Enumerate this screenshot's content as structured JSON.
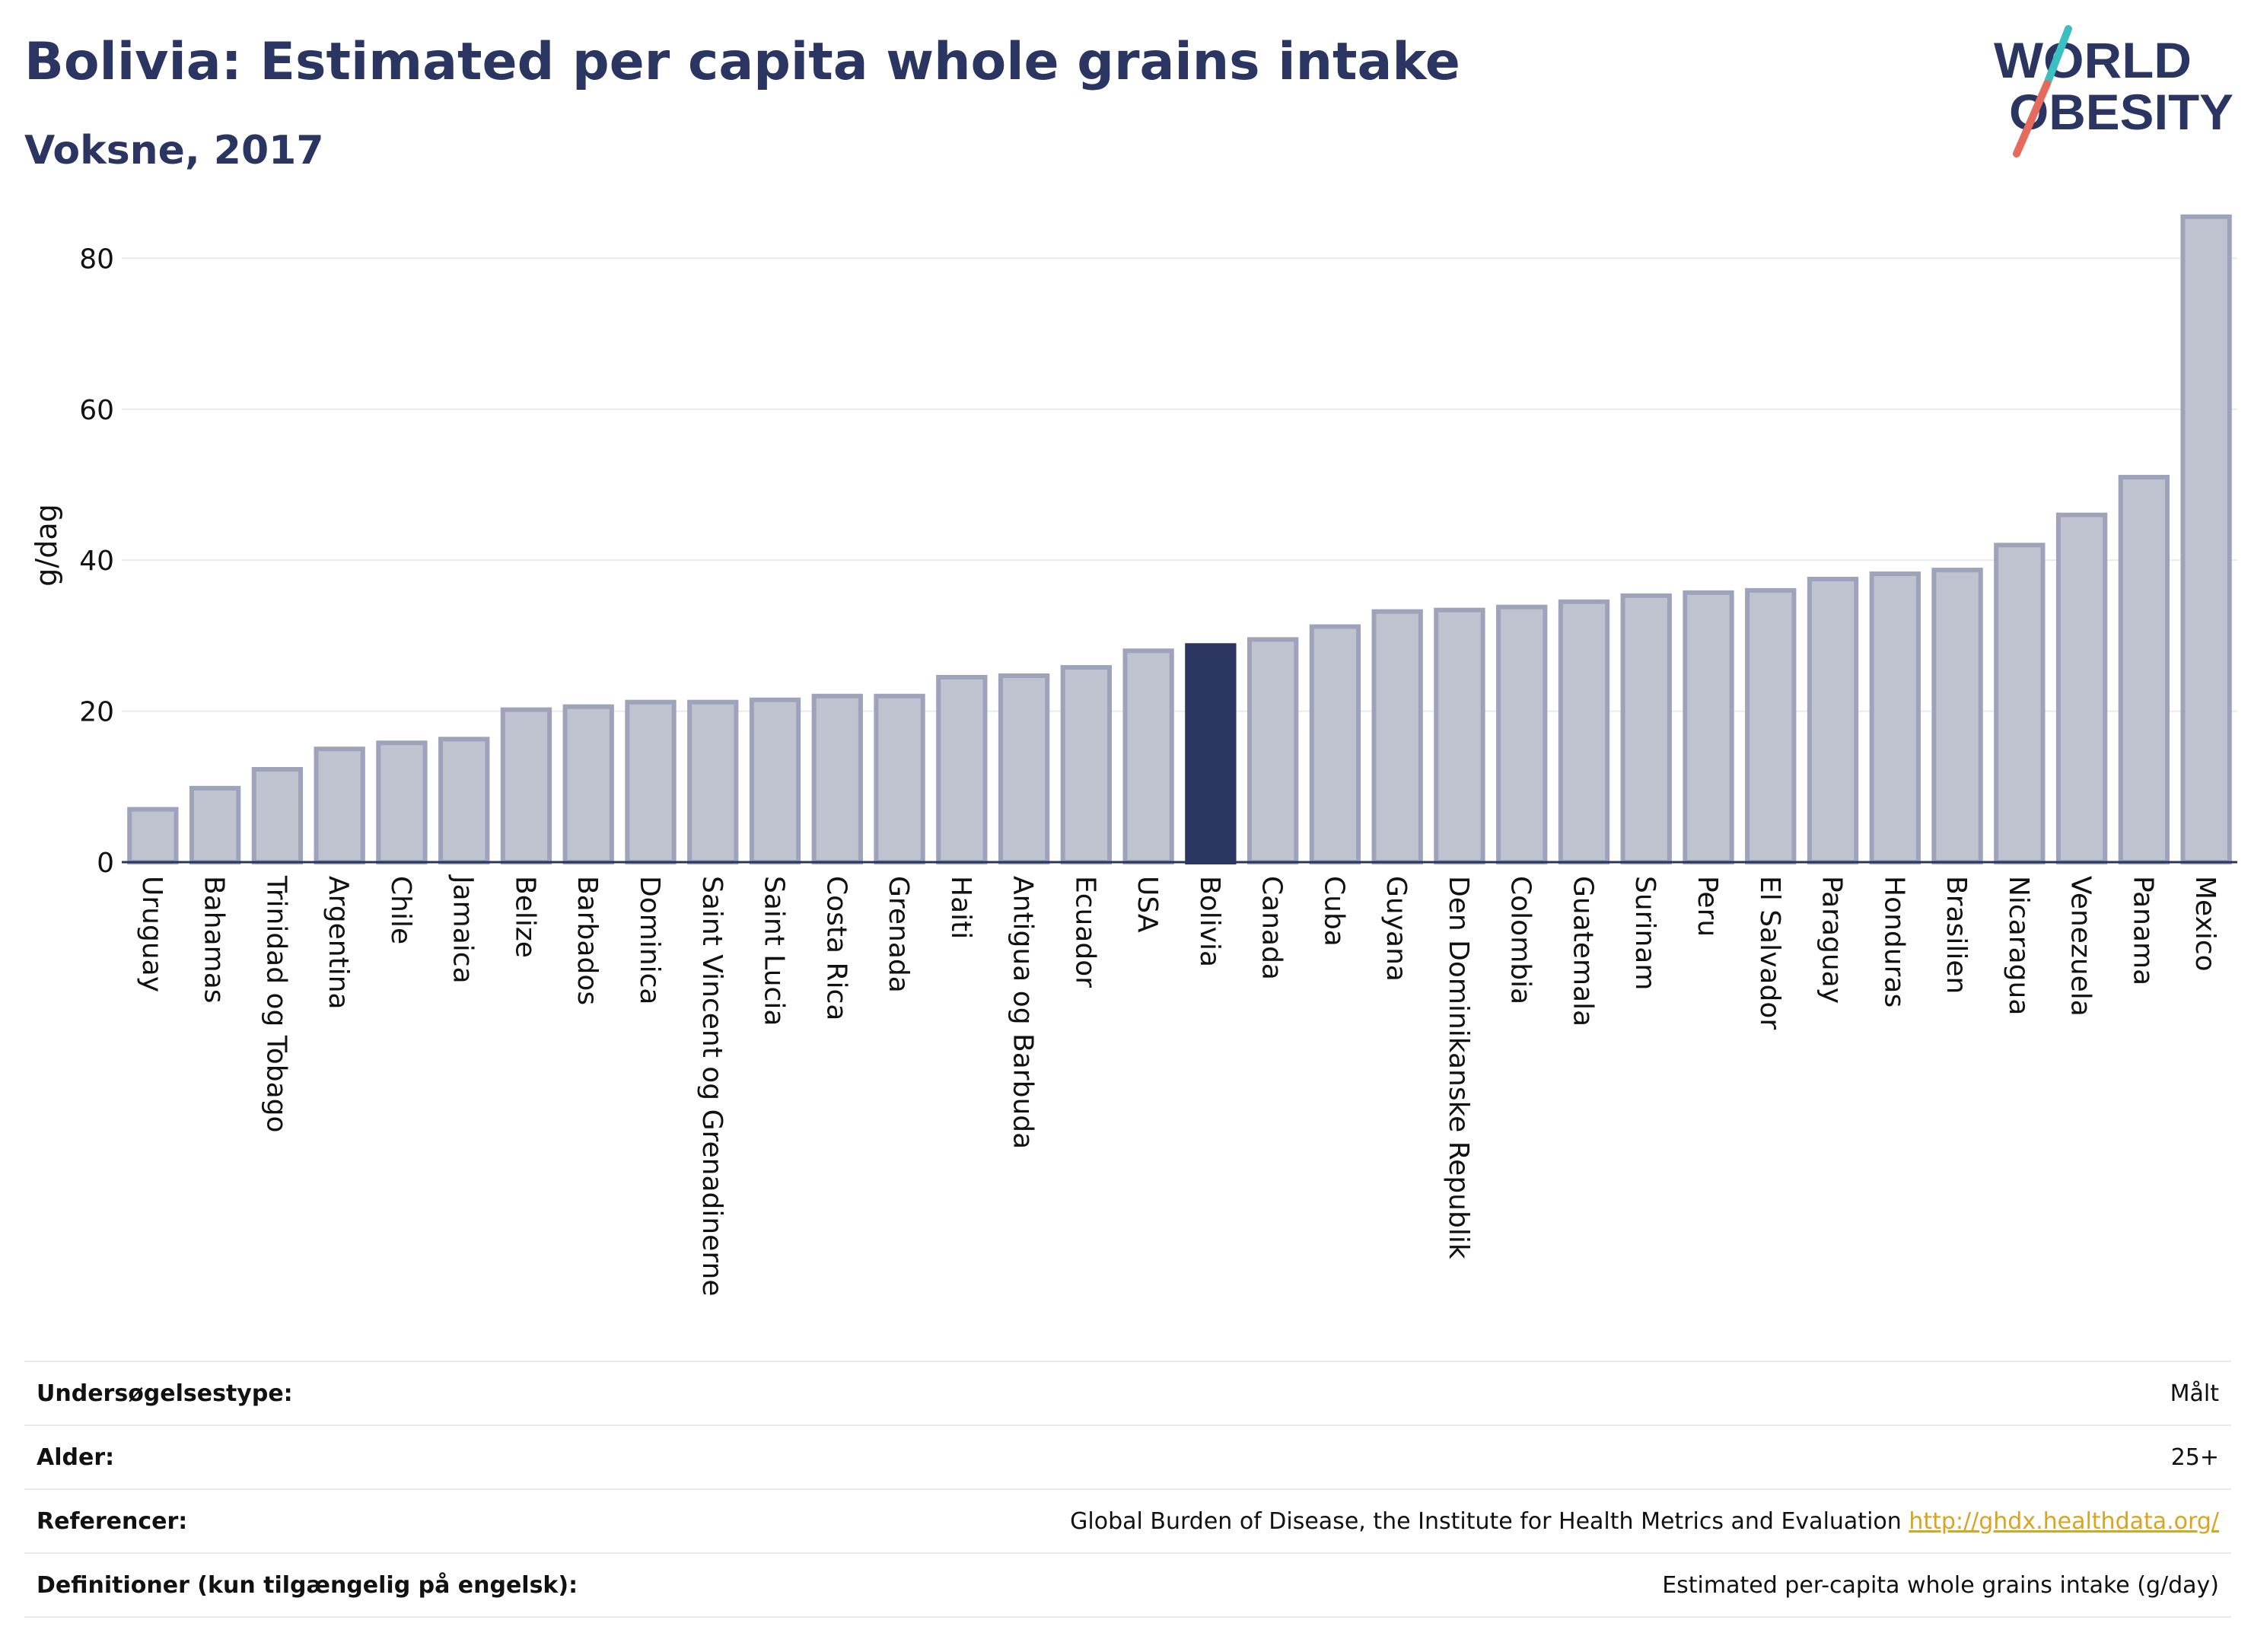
{
  "header": {
    "title": "Bolivia: Estimated per capita whole grains intake",
    "subtitle": "Voksne, 2017"
  },
  "logo": {
    "line1": "WORLD",
    "line2": "OBESITY",
    "accent1": "#3bbfc1",
    "accent2": "#e56b5d"
  },
  "colors": {
    "bar": "#bfc2cf",
    "bar_stroke": "#9ea3bb",
    "highlight": "#2b3561",
    "grid": "#e8ebee"
  },
  "chart_data": {
    "type": "bar",
    "ylabel": "g/dag",
    "ylim": [
      0,
      88
    ],
    "yticks": [
      0,
      20,
      40,
      60,
      80
    ],
    "grid": true,
    "highlight": "Bolivia",
    "categories": [
      "Uruguay",
      "Bahamas",
      "Trinidad og Tobago",
      "Argentina",
      "Chile",
      "Jamaica",
      "Belize",
      "Barbados",
      "Dominica",
      "Saint Vincent og Grenadinerne",
      "Saint Lucia",
      "Costa Rica",
      "Grenada",
      "Haiti",
      "Antigua og Barbuda",
      "Ecuador",
      "USA",
      "Bolivia",
      "Canada",
      "Cuba",
      "Guyana",
      "Den Dominikanske Republik",
      "Colombia",
      "Guatemala",
      "Surinam",
      "Peru",
      "El Salvador",
      "Paraguay",
      "Honduras",
      "Brasilien",
      "Nicaragua",
      "Venezuela",
      "Panama",
      "Mexico"
    ],
    "values": [
      7,
      9.8,
      12.3,
      15,
      15.8,
      16.3,
      20.2,
      20.6,
      21.2,
      21.2,
      21.5,
      22,
      22,
      24.5,
      24.7,
      25.8,
      28,
      28.7,
      29.5,
      31.2,
      33.2,
      33.4,
      33.8,
      34.5,
      35.3,
      35.7,
      36,
      37.5,
      38.2,
      38.7,
      42,
      46,
      51,
      85.5
    ]
  },
  "meta": [
    {
      "key": "Undersøgelsestype:",
      "value": "Målt"
    },
    {
      "key": "Alder:",
      "value": "25+"
    },
    {
      "key": "Referencer:",
      "value": "Global Burden of Disease, the Institute for Health Metrics and Evaluation",
      "link": "http://ghdx.healthdata.org/"
    },
    {
      "key": "Definitioner (kun tilgængelig på engelsk):",
      "value": "Estimated per-capita whole grains intake (g/day)"
    }
  ]
}
